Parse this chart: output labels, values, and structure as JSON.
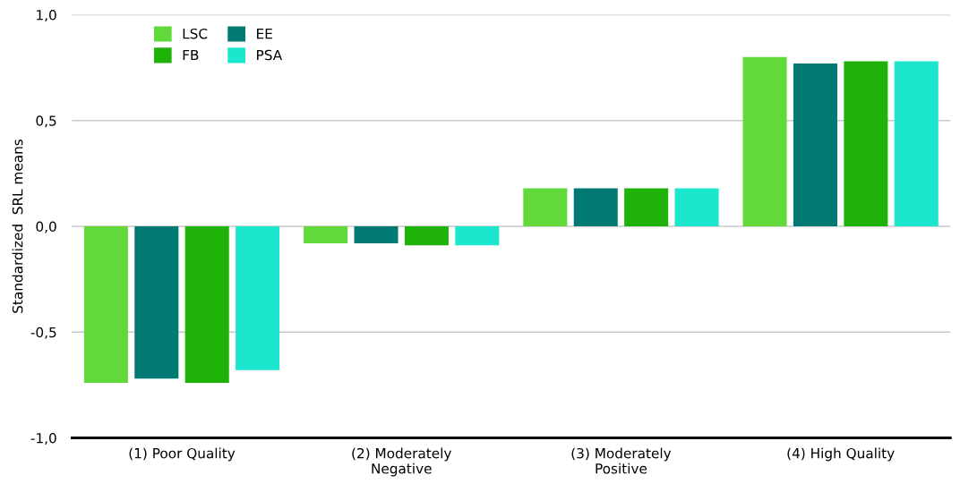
{
  "chart_data": {
    "type": "bar",
    "ylabel": "Standardized  SRL means",
    "categories": [
      "(1) Poor Quality",
      "(2) Moderately\nNegative",
      "(3) Moderately\nPositive",
      "(4) High Quality"
    ],
    "series": [
      {
        "name": "LSC",
        "color": "#62d93a",
        "values": [
          -0.74,
          -0.08,
          0.18,
          0.8
        ]
      },
      {
        "name": "EE",
        "color": "#007a73",
        "values": [
          -0.72,
          -0.08,
          0.18,
          0.77
        ]
      },
      {
        "name": "FB",
        "color": "#1fb30a",
        "values": [
          -0.74,
          -0.09,
          0.18,
          0.78
        ]
      },
      {
        "name": "PSA",
        "color": "#1de6cf",
        "values": [
          -0.68,
          -0.09,
          0.18,
          0.78
        ]
      }
    ],
    "ylim": [
      -1.0,
      1.0
    ],
    "yticks": [
      {
        "value": -1.0,
        "label": "-1,0"
      },
      {
        "value": -0.5,
        "label": "-0,5"
      },
      {
        "value": 0.0,
        "label": "0,0"
      },
      {
        "value": 0.5,
        "label": "0,5"
      },
      {
        "value": 1.0,
        "label": "1,0"
      }
    ],
    "grid": "y",
    "legend": "top left"
  }
}
